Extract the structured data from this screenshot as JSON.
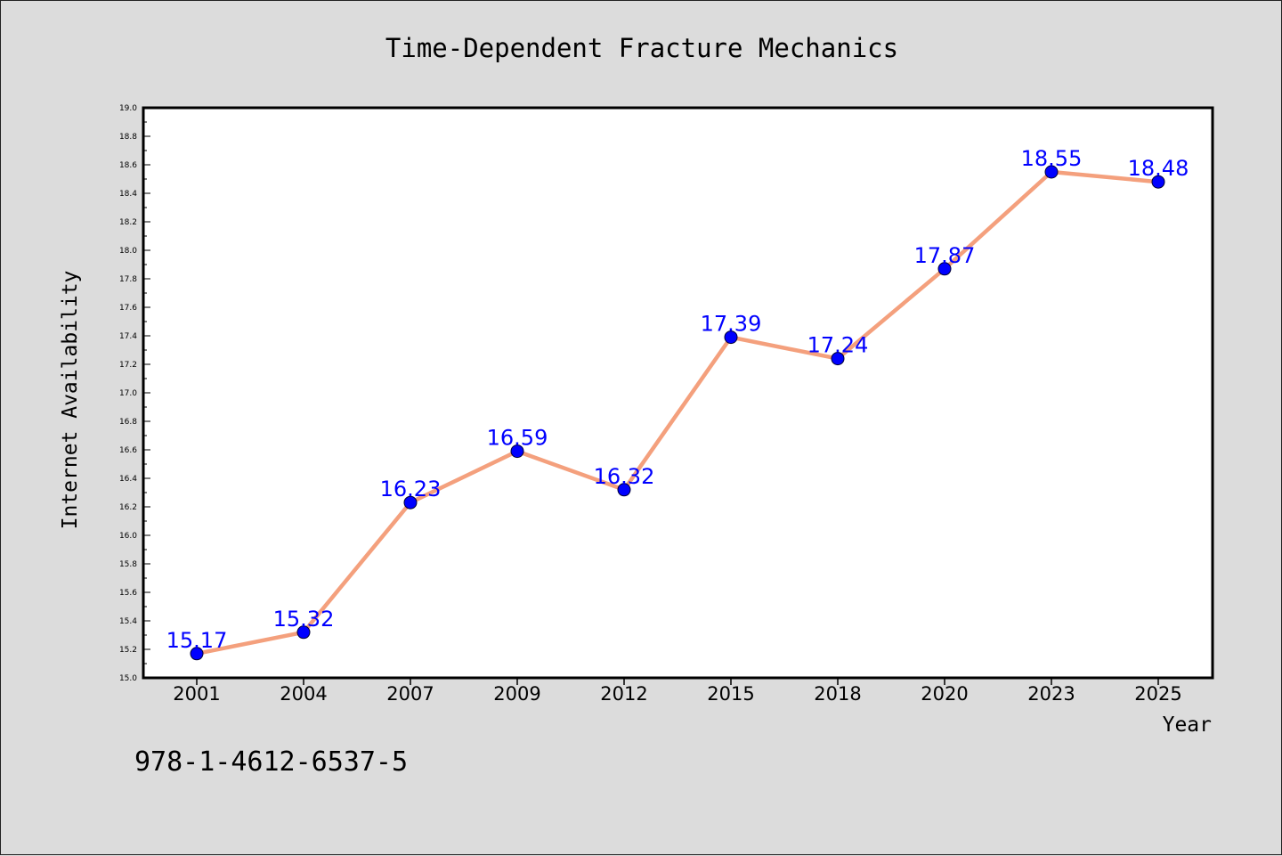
{
  "chart_data": {
    "type": "line",
    "title": "Time-Dependent Fracture Mechanics",
    "xlabel": "Year",
    "ylabel": "Internet Availability",
    "categories": [
      "2001",
      "2004",
      "2007",
      "2009",
      "2012",
      "2015",
      "2018",
      "2020",
      "2023",
      "2025"
    ],
    "series": [
      {
        "values": [
          15.17,
          15.32,
          16.23,
          16.59,
          16.32,
          17.39,
          17.24,
          17.87,
          18.55,
          18.48
        ],
        "line_color": "#f4a07d",
        "marker_color": "#0000ff"
      }
    ],
    "data_labels": [
      "15.17",
      "15.32",
      "16.23",
      "16.59",
      "16.32",
      "17.39",
      "17.24",
      "17.87",
      "18.55",
      "18.48"
    ],
    "ylim": [
      15.0,
      19.0
    ],
    "yticks": [
      "15.0",
      "15.2",
      "15.4",
      "15.6",
      "15.8",
      "16.0",
      "16.2",
      "16.4",
      "16.6",
      "16.8",
      "17.0",
      "17.2",
      "17.4",
      "17.6",
      "17.8",
      "18.0",
      "18.2",
      "18.4",
      "18.6",
      "18.8",
      "19.0"
    ],
    "grid": false,
    "legend": "none"
  },
  "footnote": "978-1-4612-6537-5",
  "colors": {
    "background": "#dcdcdc",
    "plot_background": "#ffffff",
    "line": "#f4a07d",
    "marker": "#0000ff",
    "label": "#0000ff"
  }
}
